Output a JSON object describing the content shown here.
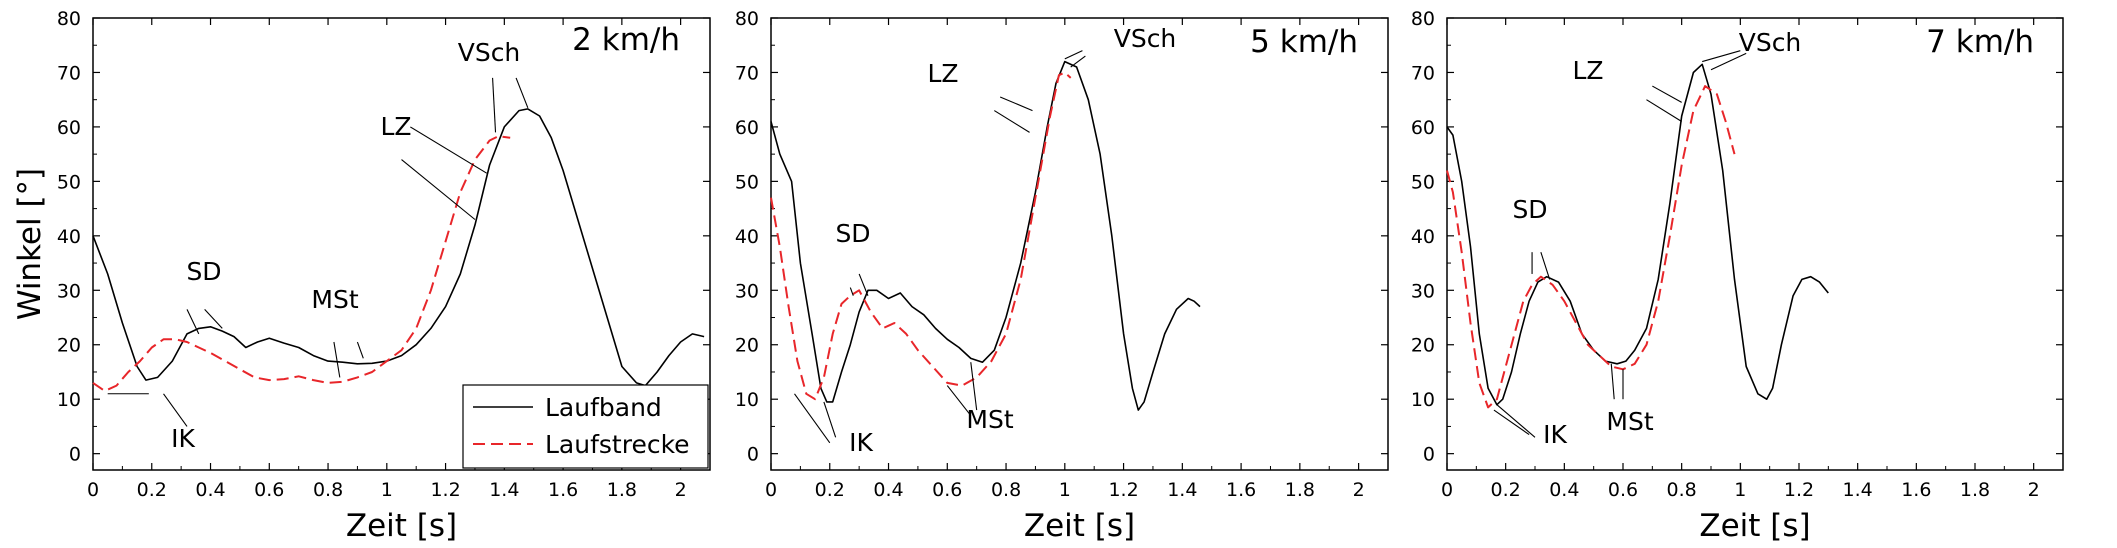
{
  "chart_data": [
    {
      "type": "line",
      "title": "2 km/h",
      "xlabel": "Zeit [s]",
      "ylabel": "Winkel [°]",
      "xlim": [
        0,
        2.1
      ],
      "ylim": [
        -3,
        80
      ],
      "xticks": [
        "0",
        "0.2",
        "0.4",
        "0.6",
        "0.8",
        "1",
        "1.2",
        "1.4",
        "1.6",
        "1.8",
        "2"
      ],
      "yticks": [
        "0",
        "10",
        "20",
        "30",
        "40",
        "50",
        "60",
        "70",
        "80"
      ],
      "series": [
        {
          "name": "Laufband",
          "color": "#000000",
          "style": "solid",
          "x": [
            0,
            0.05,
            0.1,
            0.15,
            0.18,
            0.22,
            0.27,
            0.32,
            0.36,
            0.4,
            0.44,
            0.48,
            0.52,
            0.56,
            0.6,
            0.65,
            0.7,
            0.75,
            0.8,
            0.85,
            0.9,
            0.95,
            1.0,
            1.05,
            1.1,
            1.15,
            1.2,
            1.25,
            1.3,
            1.35,
            1.4,
            1.45,
            1.48,
            1.52,
            1.56,
            1.6,
            1.65,
            1.7,
            1.75,
            1.8,
            1.85,
            1.88,
            1.92,
            1.96,
            2.0,
            2.04,
            2.08
          ],
          "y": [
            40,
            33,
            24,
            16,
            13.5,
            14,
            17,
            22,
            23,
            23.3,
            22.5,
            21.5,
            19.5,
            20.5,
            21.2,
            20.3,
            19.5,
            18,
            17,
            16.8,
            16.5,
            16.6,
            17,
            18,
            20,
            23,
            27,
            33,
            42,
            53,
            60,
            63,
            63.3,
            62,
            58,
            52,
            43,
            34,
            25,
            16,
            13,
            12.5,
            15,
            18,
            20.5,
            22,
            21.5
          ]
        },
        {
          "name": "Laufstrecke",
          "color": "#e8262a",
          "style": "dashed",
          "x": [
            0,
            0.04,
            0.08,
            0.12,
            0.16,
            0.2,
            0.24,
            0.28,
            0.32,
            0.36,
            0.4,
            0.45,
            0.5,
            0.55,
            0.6,
            0.65,
            0.7,
            0.75,
            0.8,
            0.85,
            0.9,
            0.95,
            1.0,
            1.05,
            1.1,
            1.15,
            1.2,
            1.25,
            1.3,
            1.35,
            1.38,
            1.42
          ],
          "y": [
            13,
            11.5,
            12.5,
            15,
            17,
            19.5,
            21,
            21,
            20.5,
            19.5,
            18.5,
            17,
            15.5,
            14,
            13.5,
            13.7,
            14.2,
            13.5,
            13,
            13.2,
            14,
            15,
            17,
            19,
            23,
            30,
            39,
            48,
            54,
            57.5,
            58.3,
            58
          ]
        }
      ],
      "legend": {
        "position": "bottom-right",
        "entries": [
          "Laufband",
          "Laufstrecke"
        ]
      },
      "annotations": [
        "IK",
        "SD",
        "MSt",
        "LZ",
        "VSch"
      ]
    },
    {
      "type": "line",
      "title": "5 km/h",
      "xlabel": "Zeit [s]",
      "ylabel": "",
      "xlim": [
        0,
        2.1
      ],
      "ylim": [
        -3,
        80
      ],
      "xticks": [
        "0",
        "0.2",
        "0.4",
        "0.6",
        "0.8",
        "1",
        "1.2",
        "1.4",
        "1.6",
        "1.8",
        "2"
      ],
      "yticks": [
        "0",
        "10",
        "20",
        "30",
        "40",
        "50",
        "60",
        "70",
        "80"
      ],
      "series": [
        {
          "name": "Laufband",
          "color": "#000000",
          "style": "solid",
          "x": [
            0,
            0.03,
            0.07,
            0.1,
            0.14,
            0.17,
            0.19,
            0.21,
            0.24,
            0.27,
            0.3,
            0.33,
            0.36,
            0.4,
            0.44,
            0.48,
            0.52,
            0.56,
            0.6,
            0.64,
            0.68,
            0.72,
            0.76,
            0.8,
            0.85,
            0.9,
            0.94,
            0.97,
            1.0,
            1.04,
            1.08,
            1.12,
            1.16,
            1.2,
            1.23,
            1.25,
            1.27,
            1.3,
            1.34,
            1.38,
            1.42,
            1.44,
            1.46
          ],
          "y": [
            61,
            55,
            50,
            35,
            22,
            12,
            9.5,
            9.5,
            15,
            20,
            26,
            30,
            30,
            28.5,
            29.5,
            27,
            25.5,
            23,
            21,
            19.5,
            17.5,
            16.8,
            19,
            25,
            35,
            48,
            60,
            68,
            72,
            71,
            65,
            55,
            40,
            22,
            12,
            8,
            9.5,
            15,
            22,
            26.5,
            28.5,
            28,
            27
          ]
        },
        {
          "name": "Laufstrecke",
          "color": "#e8262a",
          "style": "dashed",
          "x": [
            0,
            0.03,
            0.06,
            0.09,
            0.12,
            0.15,
            0.18,
            0.21,
            0.24,
            0.27,
            0.3,
            0.34,
            0.38,
            0.42,
            0.46,
            0.5,
            0.55,
            0.6,
            0.65,
            0.7,
            0.75,
            0.8,
            0.85,
            0.9,
            0.95,
            0.98,
            1.0,
            1.02
          ],
          "y": [
            47,
            38,
            27,
            17,
            11,
            10,
            14,
            22,
            27.5,
            29,
            30,
            26,
            23,
            24,
            22,
            19,
            16,
            13,
            12.5,
            14,
            17,
            22,
            32,
            47,
            62,
            69.5,
            70,
            69
          ]
        }
      ],
      "annotations": [
        "IK",
        "SD",
        "MSt",
        "LZ",
        "VSch"
      ]
    },
    {
      "type": "line",
      "title": "7 km/h",
      "xlabel": "Zeit [s]",
      "ylabel": "",
      "xlim": [
        0,
        2.1
      ],
      "ylim": [
        -3,
        80
      ],
      "xticks": [
        "0",
        "0.2",
        "0.4",
        "0.6",
        "0.8",
        "1",
        "1.2",
        "1.4",
        "1.6",
        "1.8",
        "2"
      ],
      "yticks": [
        "0",
        "10",
        "20",
        "30",
        "40",
        "50",
        "60",
        "70",
        "80"
      ],
      "series": [
        {
          "name": "Laufband",
          "color": "#000000",
          "style": "solid",
          "x": [
            0,
            0.02,
            0.05,
            0.08,
            0.11,
            0.14,
            0.17,
            0.19,
            0.22,
            0.25,
            0.28,
            0.31,
            0.34,
            0.38,
            0.42,
            0.46,
            0.5,
            0.54,
            0.58,
            0.61,
            0.64,
            0.68,
            0.72,
            0.76,
            0.8,
            0.84,
            0.87,
            0.9,
            0.94,
            0.98,
            1.02,
            1.06,
            1.09,
            1.11,
            1.14,
            1.18,
            1.21,
            1.24,
            1.27,
            1.3
          ],
          "y": [
            60,
            58.5,
            50,
            38,
            22,
            12,
            9,
            10,
            15,
            22,
            28,
            31.5,
            32.5,
            31.5,
            28,
            22,
            19,
            17,
            16.5,
            17,
            19,
            23,
            32,
            46,
            62,
            70,
            71.5,
            66,
            52,
            32,
            16,
            11,
            10,
            12,
            20,
            29,
            32,
            32.5,
            31.5,
            29.5
          ]
        },
        {
          "name": "Laufstrecke",
          "color": "#e8262a",
          "style": "dashed",
          "x": [
            0,
            0.02,
            0.05,
            0.08,
            0.11,
            0.14,
            0.17,
            0.2,
            0.23,
            0.26,
            0.29,
            0.32,
            0.36,
            0.4,
            0.44,
            0.48,
            0.52,
            0.56,
            0.6,
            0.64,
            0.68,
            0.72,
            0.76,
            0.8,
            0.84,
            0.88,
            0.92,
            0.95,
            0.98
          ],
          "y": [
            52,
            48,
            37,
            24,
            13,
            8.5,
            10,
            16,
            22,
            28,
            31,
            32.5,
            31,
            28,
            24,
            20,
            18,
            16,
            15.5,
            16.5,
            20,
            28,
            40,
            53,
            63,
            67.5,
            66,
            61,
            55
          ]
        }
      ],
      "annotations": [
        "IK",
        "SD",
        "MSt",
        "LZ",
        "VSch"
      ]
    }
  ]
}
